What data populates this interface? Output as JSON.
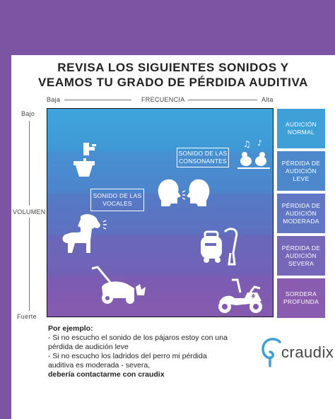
{
  "title": {
    "line1": "REVISA LOS SIGUIENTES SONIDOS Y",
    "line2": "VEAMOS TU GRADO DE PÉRDIDA AUDITIVA"
  },
  "frequency_axis": {
    "low": "Baja",
    "label": "FRECUENCIA",
    "high": "Alta"
  },
  "volume_axis": {
    "low": "Bajo",
    "label": "VOLUMEN",
    "high": "Fuerte"
  },
  "levels": [
    {
      "line1": "AUDICIÓN",
      "line2": "NORMAL",
      "line3": "",
      "color": "#3fa0d8"
    },
    {
      "line1": "PÉRDIDA DE",
      "line2": "AUDICIÓN",
      "line3": "LEVE",
      "color": "#4d87cc"
    },
    {
      "line1": "PÉRDIDA DE",
      "line2": "AUDICIÓN",
      "line3": "MODERADA",
      "color": "#6177c4"
    },
    {
      "line1": "PÉRDIDA DE",
      "line2": "AUDICIÓN",
      "line3": "SEVERA",
      "color": "#7767b8"
    },
    {
      "line1": "SORDERA",
      "line2": "PROFUNDA",
      "line3": "",
      "color": "#8a5cb0"
    }
  ],
  "labels": {
    "consonants_line1": "SONIDO DE LAS",
    "consonants_line2": "CONSONANTES",
    "vowels_line1": "SONIDO DE LAS",
    "vowels_line2": "VOCALES"
  },
  "icons": [
    "faucet-icon",
    "birds-icon",
    "speaking-heads-icon",
    "dog-icon",
    "vacuum-icon",
    "lawnmower-icon",
    "scooter-icon"
  ],
  "example": {
    "heading": "Por ejemplo:",
    "line1": "- Si no escucho el sonido de los pájaros estoy con una",
    "line2": "pérdida de audición leve",
    "line3": "- Si no escucho los ladridos del perro mi pérdida",
    "line4": "auditiva es moderada - severa,",
    "line5": "debería contactarme con craudix"
  },
  "brand": {
    "name": "craudix"
  },
  "colors": {
    "background": "#7b55a3",
    "accent": "#3fa0d8"
  }
}
